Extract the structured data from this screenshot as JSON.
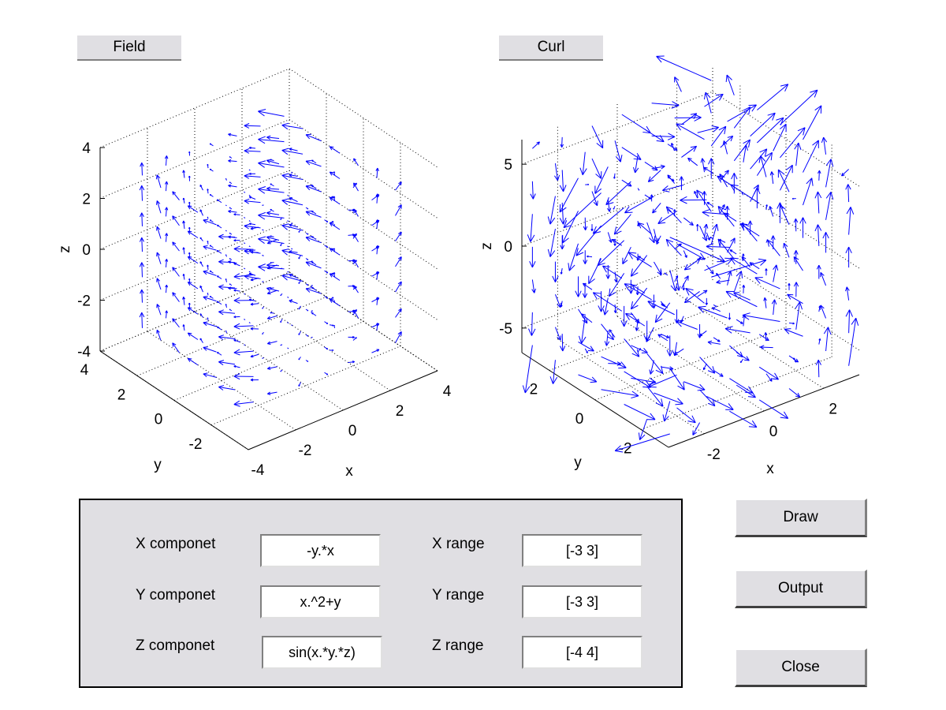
{
  "titles": {
    "field": "Field",
    "curl": "Curl"
  },
  "form": {
    "x_component_label": "X componet",
    "y_component_label": "Y componet",
    "z_component_label": "Z componet",
    "x_component": "-y.*x",
    "y_component": "x.^2+y",
    "z_component": "sin(x.*y.*z)",
    "x_range_label": "X range",
    "y_range_label": "Y range",
    "z_range_label": "Z range",
    "x_range": "[-3 3]",
    "y_range": "[-3 3]",
    "z_range": "[-4 4]"
  },
  "buttons": {
    "draw": "Draw",
    "output": "Output",
    "close": "Close"
  },
  "chart_data": [
    {
      "type": "quiver3",
      "name": "Field",
      "xlabel": "x",
      "ylabel": "y",
      "zlabel": "z",
      "xlim": [
        -4,
        4
      ],
      "ylim": [
        -4,
        4
      ],
      "zlim": [
        -4,
        4
      ],
      "xticks": [
        "-4",
        "-2",
        "0",
        "2",
        "4"
      ],
      "yticks": [
        "-2",
        "0",
        "2",
        "4"
      ],
      "zticks": [
        "-4",
        "-2",
        "0",
        "2",
        "4"
      ],
      "grid": true,
      "color": "#0000ff"
    },
    {
      "type": "quiver3",
      "name": "Curl",
      "xlabel": "x",
      "ylabel": "y",
      "zlabel": "z",
      "xlim": [
        -3.2,
        3.2
      ],
      "ylim": [
        -3.2,
        3.2
      ],
      "zlim": [
        -6.5,
        6.5
      ],
      "xticks": [
        "-2",
        "0",
        "2"
      ],
      "yticks": [
        "-2",
        "0",
        "2"
      ],
      "zticks": [
        "-5",
        "0",
        "5"
      ],
      "grid": true,
      "color": "#0000ff"
    }
  ]
}
